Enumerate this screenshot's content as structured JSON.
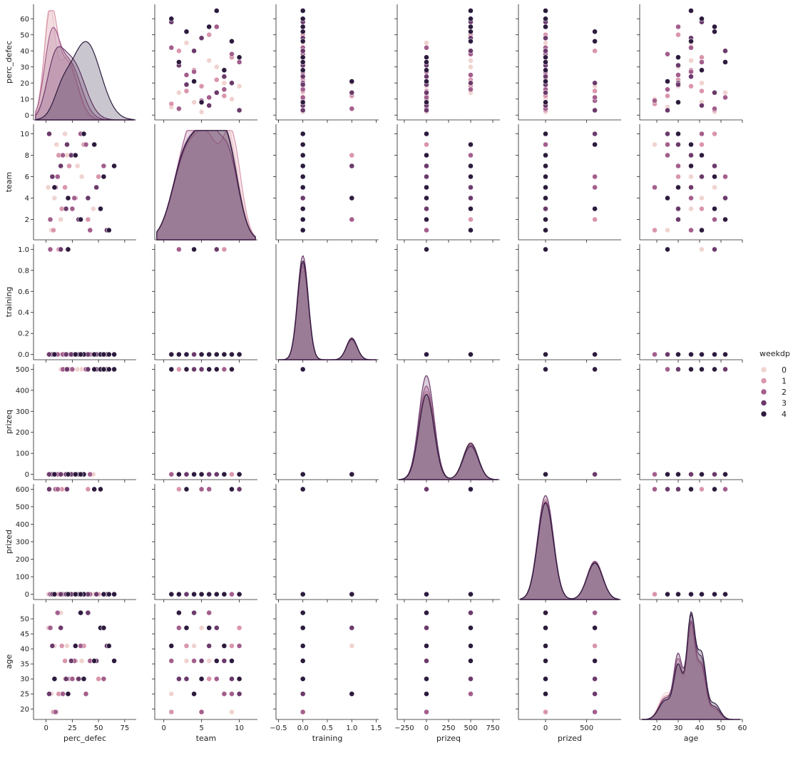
{
  "chart_data": {
    "type": "scatter",
    "kind": "pairplot",
    "variables": [
      "perc_defec",
      "team",
      "training",
      "prizeq",
      "prized",
      "age"
    ],
    "diagonal": "kde",
    "hue": {
      "name": "weekdp",
      "levels": [
        "0",
        "1",
        "2",
        "3",
        "4"
      ],
      "colors": [
        "#f0d3d0",
        "#d996ac",
        "#a35e8c",
        "#6b3a6b",
        "#2d1b3e"
      ]
    },
    "axes": {
      "perc_defec": {
        "lim": [
          -12,
          86
        ],
        "ticks": [
          0,
          25,
          50,
          75
        ],
        "ylim": [
          -3,
          69
        ],
        "yticks": [
          0,
          10,
          20,
          30,
          40,
          50,
          60
        ]
      },
      "team": {
        "lim": [
          -1.2,
          12.4
        ],
        "ticks": [
          0,
          5,
          10
        ],
        "ylim": [
          0.1,
          10.9
        ],
        "yticks": [
          2,
          4,
          6,
          8,
          10
        ]
      },
      "training": {
        "lim": [
          -0.55,
          1.55
        ],
        "ticks": [
          -0.5,
          0.0,
          0.5,
          1.0,
          1.5
        ],
        "tick_labels": [
          "−0.5",
          "0.0",
          "0.5",
          "1.0",
          "1.5"
        ],
        "ylim": [
          -0.05,
          1.05
        ],
        "yticks": [
          0.0,
          0.2,
          0.4,
          0.6,
          0.8,
          1.0
        ],
        "ytick_labels": [
          "0.0",
          "0.2",
          "0.4",
          "0.6",
          "0.8",
          "1.0"
        ]
      },
      "prizeq": {
        "lim": [
          -330,
          830
        ],
        "ticks": [
          -250,
          0,
          250,
          500,
          750
        ],
        "tick_labels": [
          "−250",
          "0",
          "250",
          "500",
          "750"
        ],
        "ylim": [
          -25,
          525
        ],
        "yticks": [
          0,
          100,
          200,
          300,
          400,
          500
        ]
      },
      "prized": {
        "lim": [
          -330,
          920
        ],
        "ticks": [
          0,
          500
        ],
        "ylim": [
          -30,
          630
        ],
        "yticks": [
          0,
          100,
          200,
          300,
          400,
          500,
          600
        ]
      },
      "age": {
        "lim": [
          12,
          60
        ],
        "ticks": [
          20,
          30,
          40,
          50,
          60
        ],
        "ylim": [
          16.5,
          55
        ],
        "yticks": [
          20,
          25,
          30,
          35,
          40,
          45,
          50
        ]
      }
    },
    "points": [
      {
        "perc_defec": 14,
        "team": 2,
        "training": 0,
        "prizeq": 500,
        "prized": 0,
        "age": 52,
        "weekdp": 0
      },
      {
        "perc_defec": 5,
        "team": 1,
        "training": 0,
        "prizeq": 0,
        "prized": 0,
        "age": 25,
        "weekdp": 0
      },
      {
        "perc_defec": 30,
        "team": 7,
        "training": 0,
        "prizeq": 500,
        "prized": 0,
        "age": 30,
        "weekdp": 0
      },
      {
        "perc_defec": 45,
        "team": 3,
        "training": 0,
        "prizeq": 0,
        "prized": 0,
        "age": 36,
        "weekdp": 0
      },
      {
        "perc_defec": 20,
        "team": 8,
        "training": 1,
        "prizeq": 0,
        "prized": 0,
        "age": 41,
        "weekdp": 0
      },
      {
        "perc_defec": 2,
        "team": 5,
        "training": 0,
        "prizeq": 0,
        "prized": 0,
        "age": 47,
        "weekdp": 0
      },
      {
        "perc_defec": 10,
        "team": 9,
        "training": 0,
        "prizeq": 0,
        "prized": 0,
        "age": 19,
        "weekdp": 0
      },
      {
        "perc_defec": 34,
        "team": 6,
        "training": 0,
        "prizeq": 500,
        "prized": 0,
        "age": 36,
        "weekdp": 0
      },
      {
        "perc_defec": 18,
        "team": 10,
        "training": 0,
        "prizeq": 0,
        "prized": 600,
        "age": 30,
        "weekdp": 0
      },
      {
        "perc_defec": 8,
        "team": 4,
        "training": 0,
        "prizeq": 0,
        "prized": 0,
        "age": 41,
        "weekdp": 0
      },
      {
        "perc_defec": 40,
        "team": 2,
        "training": 0,
        "prizeq": 500,
        "prized": 600,
        "age": 52,
        "weekdp": 1
      },
      {
        "perc_defec": 12,
        "team": 8,
        "training": 1,
        "prizeq": 0,
        "prized": 0,
        "age": 25,
        "weekdp": 1
      },
      {
        "perc_defec": 22,
        "team": 7,
        "training": 0,
        "prizeq": 500,
        "prized": 0,
        "age": 30,
        "weekdp": 1
      },
      {
        "perc_defec": 3,
        "team": 10,
        "training": 0,
        "prizeq": 0,
        "prized": 0,
        "age": 47,
        "weekdp": 1
      },
      {
        "perc_defec": 28,
        "team": 4,
        "training": 0,
        "prizeq": 0,
        "prized": 0,
        "age": 36,
        "weekdp": 1
      },
      {
        "perc_defec": 15,
        "team": 3,
        "training": 0,
        "prizeq": 0,
        "prized": 600,
        "age": 41,
        "weekdp": 1
      },
      {
        "perc_defec": 50,
        "team": 6,
        "training": 0,
        "prizeq": 500,
        "prized": 0,
        "age": 30,
        "weekdp": 1
      },
      {
        "perc_defec": 7,
        "team": 1,
        "training": 0,
        "prizeq": 0,
        "prized": 0,
        "age": 19,
        "weekdp": 1
      },
      {
        "perc_defec": 36,
        "team": 9,
        "training": 0,
        "prizeq": 0,
        "prized": 0,
        "age": 41,
        "weekdp": 1
      },
      {
        "perc_defec": 18,
        "team": 5,
        "training": 0,
        "prizeq": 500,
        "prized": 0,
        "age": 36,
        "weekdp": 1
      },
      {
        "perc_defec": 9,
        "team": 5,
        "training": 0,
        "prizeq": 0,
        "prized": 600,
        "age": 19,
        "weekdp": 2
      },
      {
        "perc_defec": 25,
        "team": 3,
        "training": 0,
        "prizeq": 500,
        "prized": 0,
        "age": 30,
        "weekdp": 2
      },
      {
        "perc_defec": 42,
        "team": 1,
        "training": 0,
        "prizeq": 0,
        "prized": 0,
        "age": 36,
        "weekdp": 2
      },
      {
        "perc_defec": 16,
        "team": 8,
        "training": 0,
        "prizeq": 500,
        "prized": 0,
        "age": 25,
        "weekdp": 2
      },
      {
        "perc_defec": 4,
        "team": 2,
        "training": 1,
        "prizeq": 0,
        "prized": 0,
        "age": 47,
        "weekdp": 2
      },
      {
        "perc_defec": 33,
        "team": 10,
        "training": 0,
        "prizeq": 0,
        "prized": 0,
        "age": 41,
        "weekdp": 2
      },
      {
        "perc_defec": 55,
        "team": 7,
        "training": 0,
        "prizeq": 500,
        "prized": 0,
        "age": 30,
        "weekdp": 2
      },
      {
        "perc_defec": 11,
        "team": 6,
        "training": 0,
        "prizeq": 0,
        "prized": 600,
        "age": 52,
        "weekdp": 2
      },
      {
        "perc_defec": 27,
        "team": 4,
        "training": 0,
        "prizeq": 0,
        "prized": 0,
        "age": 36,
        "weekdp": 2
      },
      {
        "perc_defec": 38,
        "team": 9,
        "training": 0,
        "prizeq": 500,
        "prized": 0,
        "age": 25,
        "weekdp": 2
      },
      {
        "perc_defec": 20,
        "team": 9,
        "training": 0,
        "prizeq": 500,
        "prized": 600,
        "age": 30,
        "weekdp": 3
      },
      {
        "perc_defec": 6,
        "team": 6,
        "training": 0,
        "prizeq": 0,
        "prized": 0,
        "age": 41,
        "weekdp": 3
      },
      {
        "perc_defec": 48,
        "team": 5,
        "training": 0,
        "prizeq": 500,
        "prized": 0,
        "age": 36,
        "weekdp": 3
      },
      {
        "perc_defec": 31,
        "team": 2,
        "training": 0,
        "prizeq": 0,
        "prized": 0,
        "age": 30,
        "weekdp": 3
      },
      {
        "perc_defec": 14,
        "team": 7,
        "training": 1,
        "prizeq": 0,
        "prized": 0,
        "age": 47,
        "weekdp": 3
      },
      {
        "perc_defec": 58,
        "team": 1,
        "training": 0,
        "prizeq": 500,
        "prized": 0,
        "age": 41,
        "weekdp": 3
      },
      {
        "perc_defec": 3,
        "team": 10,
        "training": 0,
        "prizeq": 0,
        "prized": 600,
        "age": 25,
        "weekdp": 3
      },
      {
        "perc_defec": 24,
        "team": 8,
        "training": 0,
        "prizeq": 0,
        "prized": 0,
        "age": 36,
        "weekdp": 3
      },
      {
        "perc_defec": 40,
        "team": 4,
        "training": 0,
        "prizeq": 500,
        "prized": 0,
        "age": 52,
        "weekdp": 3
      },
      {
        "perc_defec": 19,
        "team": 3,
        "training": 0,
        "prizeq": 0,
        "prized": 0,
        "age": 30,
        "weekdp": 3
      },
      {
        "perc_defec": 65,
        "team": 7,
        "training": 0,
        "prizeq": 500,
        "prized": 0,
        "age": 36,
        "weekdp": 4
      },
      {
        "perc_defec": 52,
        "team": 3,
        "training": 0,
        "prizeq": 500,
        "prized": 600,
        "age": 47,
        "weekdp": 4
      },
      {
        "perc_defec": 36,
        "team": 10,
        "training": 0,
        "prizeq": 0,
        "prized": 0,
        "age": 30,
        "weekdp": 4
      },
      {
        "perc_defec": 60,
        "team": 1,
        "training": 0,
        "prizeq": 500,
        "prized": 0,
        "age": 41,
        "weekdp": 4
      },
      {
        "perc_defec": 21,
        "team": 4,
        "training": 1,
        "prizeq": 0,
        "prized": 0,
        "age": 25,
        "weekdp": 4
      },
      {
        "perc_defec": 46,
        "team": 9,
        "training": 0,
        "prizeq": 500,
        "prized": 600,
        "age": 36,
        "weekdp": 4
      },
      {
        "perc_defec": 8,
        "team": 5,
        "training": 0,
        "prizeq": 0,
        "prized": 0,
        "age": 30,
        "weekdp": 4
      },
      {
        "perc_defec": 28,
        "team": 8,
        "training": 0,
        "prizeq": 0,
        "prized": 0,
        "age": 41,
        "weekdp": 4
      },
      {
        "perc_defec": 55,
        "team": 6,
        "training": 0,
        "prizeq": 500,
        "prized": 0,
        "age": 47,
        "weekdp": 4
      },
      {
        "perc_defec": 33,
        "team": 2,
        "training": 0,
        "prizeq": 0,
        "prized": 0,
        "age": 52,
        "weekdp": 4
      }
    ]
  }
}
